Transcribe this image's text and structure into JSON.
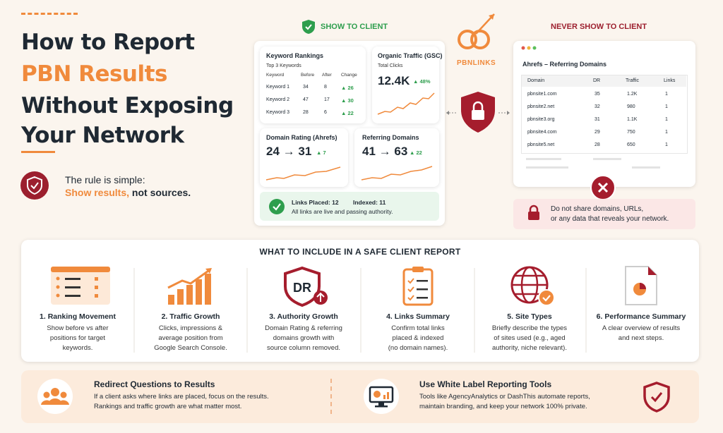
{
  "header": {
    "title_lines": [
      "How to Report",
      "PBN Results",
      "Without Exposing",
      "Your Network"
    ],
    "rule_intro": "The rule is simple:",
    "rule_highlight": "Show results,",
    "rule_rest": "not sources."
  },
  "show_panel": {
    "label": "SHOW TO CLIENT",
    "keyword_rankings": {
      "title": "Keyword Rankings",
      "subtitle": "Top 3 Keywords",
      "columns": [
        "Keyword",
        "Before",
        "After",
        "Change"
      ],
      "rows": [
        [
          "Keyword 1",
          "34",
          "8",
          "26"
        ],
        [
          "Keyword 2",
          "47",
          "17",
          "30"
        ],
        [
          "Keyword 3",
          "28",
          "6",
          "22"
        ]
      ]
    },
    "organic_traffic": {
      "title": "Organic Traffic (GSC)",
      "metric_label": "Total Clicks",
      "value": "12.4K",
      "change": "48%"
    },
    "domain_rating": {
      "title": "Domain Rating (Ahrefs)",
      "from": "24",
      "to": "31",
      "change": "7"
    },
    "referring_domains": {
      "title": "Referring Domains",
      "from": "41",
      "to": "63",
      "change": "22"
    },
    "links_summary": {
      "placed": "Links Placed: 12",
      "indexed": "Indexed: 11",
      "note": "All links are live and passing authority."
    }
  },
  "logo": {
    "text": "PBNLINKS"
  },
  "never_panel": {
    "label": "NEVER SHOW TO CLIENT",
    "window_title": "Ahrefs – Referring Domains",
    "columns": [
      "Domain",
      "DR",
      "Traffic",
      "Links"
    ],
    "rows": [
      [
        "pbnsite1.com",
        "35",
        "1.2K",
        "1"
      ],
      [
        "pbnsite2.net",
        "32",
        "980",
        "1"
      ],
      [
        "pbnsite3.org",
        "31",
        "1.1K",
        "1"
      ],
      [
        "pbnsite4.com",
        "29",
        "750",
        "1"
      ],
      [
        "pbnsite5.net",
        "28",
        "650",
        "1"
      ]
    ],
    "warning_lines": [
      "Do not share domains, URLs,",
      "or any data that reveals your network."
    ]
  },
  "include_section": {
    "title": "WHAT TO INCLUDE IN A SAFE CLIENT REPORT",
    "icon_text": "DR",
    "items": [
      {
        "title": "1. Ranking Movement",
        "lines": [
          "Show before vs after",
          "positions for target",
          "keywords."
        ]
      },
      {
        "title": "2. Traffic Growth",
        "lines": [
          "Clicks, impressions &",
          "average position from",
          "Google Search Console."
        ]
      },
      {
        "title": "3. Authority Growth",
        "lines": [
          "Domain Rating & referring",
          "domains growth with",
          "source column removed."
        ]
      },
      {
        "title": "4. Links Summary",
        "lines": [
          "Confirm total links",
          "placed & indexed",
          "(no domain names)."
        ]
      },
      {
        "title": "5. Site Types",
        "lines": [
          "Briefly describe the types",
          "of sites used (e.g., aged",
          "authority, niche relevant)."
        ]
      },
      {
        "title": "6. Performance Summary",
        "lines": [
          "A clear overview of results",
          "and next steps."
        ]
      }
    ]
  },
  "tips": [
    {
      "title": "Redirect Questions to Results",
      "lines": [
        "If a client asks where links are placed, focus on the results.",
        "Rankings and traffic growth are what matter most."
      ]
    },
    {
      "title": "Use White Label Reporting Tools",
      "lines": [
        "Tools like AgencyAnalytics or DashThis automate reports,",
        "maintain branding, and keep your network 100% private."
      ]
    }
  ]
}
